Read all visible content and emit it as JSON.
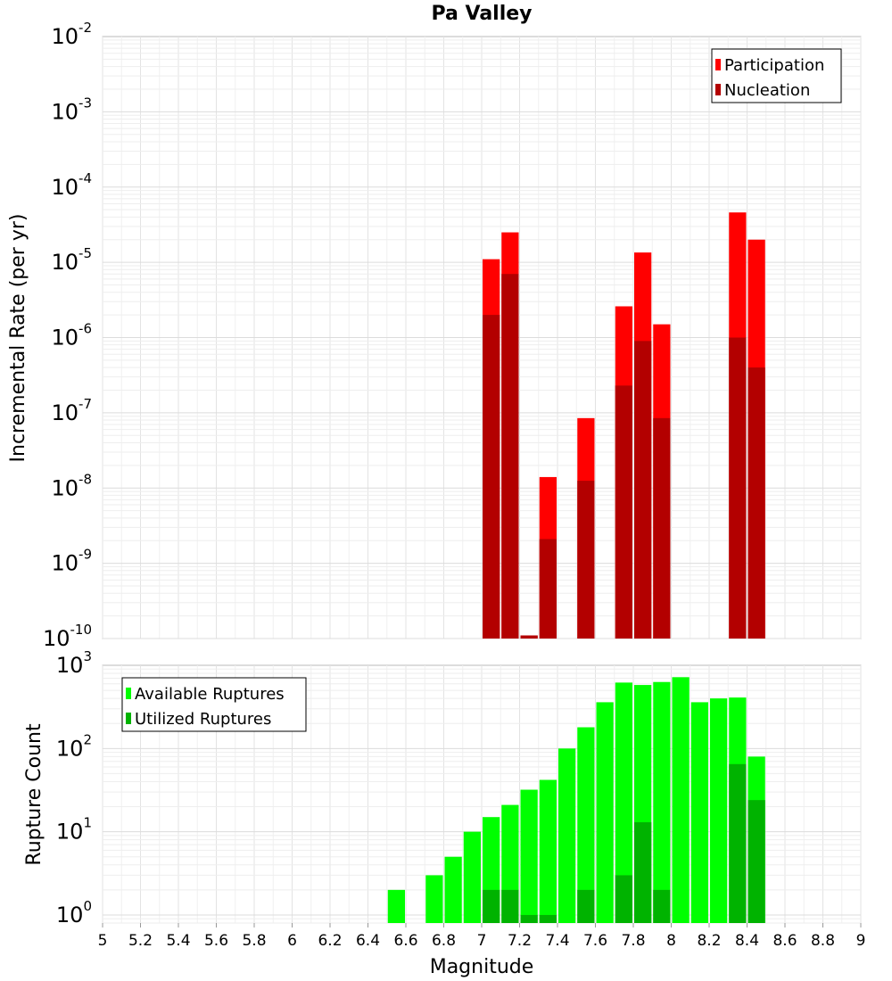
{
  "chart_data": [
    {
      "type": "bar",
      "title": "Pa Valley",
      "xlabel": "Magnitude",
      "ylabel": "Incremental Rate (per yr)",
      "xlim": [
        5,
        9
      ],
      "ylim": [
        1e-10,
        0.01
      ],
      "yscale": "log",
      "bin_width": 0.1,
      "grid": true,
      "legend_position": "top-right",
      "x_ticks": [
        "5",
        "5.2",
        "5.4",
        "5.6",
        "5.8",
        "6",
        "6.2",
        "6.4",
        "6.6",
        "6.8",
        "7",
        "7.2",
        "7.4",
        "7.6",
        "7.8",
        "8",
        "8.2",
        "8.4",
        "8.6",
        "8.8",
        "9"
      ],
      "y_tick_exponents": [
        "-10",
        "-9",
        "-8",
        "-7",
        "-6",
        "-5",
        "-4",
        "-3",
        "-2"
      ],
      "y_tick_base": "10",
      "series": [
        {
          "name": "Participation",
          "color": "#ff0000",
          "x": [
            7.05,
            7.15,
            7.25,
            7.35,
            7.55,
            7.75,
            7.85,
            7.95,
            8.35,
            8.45
          ],
          "values": [
            1.1e-05,
            2.5e-05,
            1.1e-10,
            1.4e-08,
            8.5e-08,
            2.6e-06,
            1.35e-05,
            1.5e-06,
            4.6e-05,
            2e-05
          ]
        },
        {
          "name": "Nucleation",
          "color": "#b30000",
          "x": [
            7.05,
            7.15,
            7.25,
            7.35,
            7.55,
            7.75,
            7.85,
            7.95,
            8.35,
            8.45
          ],
          "values": [
            2e-06,
            7e-06,
            1.1e-10,
            2.1e-09,
            1.25e-08,
            2.3e-07,
            9e-07,
            8.5e-08,
            1e-06,
            4e-07
          ]
        }
      ]
    },
    {
      "type": "bar",
      "xlabel": "Magnitude",
      "ylabel": "Rupture Count",
      "xlim": [
        5,
        9
      ],
      "ylim": [
        0.8,
        1000
      ],
      "yscale": "log",
      "bin_width": 0.1,
      "grid": true,
      "legend_position": "top-left",
      "x_ticks": [
        "5",
        "5.2",
        "5.4",
        "5.6",
        "5.8",
        "6",
        "6.2",
        "6.4",
        "6.6",
        "6.8",
        "7",
        "7.2",
        "7.4",
        "7.6",
        "7.8",
        "8",
        "8.2",
        "8.4",
        "8.6",
        "8.8",
        "9"
      ],
      "y_tick_exponents": [
        "0",
        "1",
        "2",
        "3"
      ],
      "y_tick_base": "10",
      "series": [
        {
          "name": "Available Ruptures",
          "color": "#00ff00",
          "x": [
            6.55,
            6.75,
            6.85,
            6.95,
            7.05,
            7.15,
            7.25,
            7.35,
            7.45,
            7.55,
            7.65,
            7.75,
            7.85,
            7.95,
            8.05,
            8.15,
            8.25,
            8.35,
            8.45
          ],
          "values": [
            2,
            3,
            5,
            10,
            15,
            21,
            32,
            42,
            100,
            180,
            360,
            620,
            580,
            630,
            720,
            360,
            400,
            410,
            80
          ]
        },
        {
          "name": "Utilized Ruptures",
          "color": "#00b300",
          "x": [
            7.05,
            7.15,
            7.25,
            7.35,
            7.55,
            7.75,
            7.85,
            7.95,
            8.35,
            8.45
          ],
          "values": [
            2,
            2,
            1,
            1,
            2,
            3,
            13,
            2,
            65,
            24
          ]
        }
      ]
    }
  ]
}
